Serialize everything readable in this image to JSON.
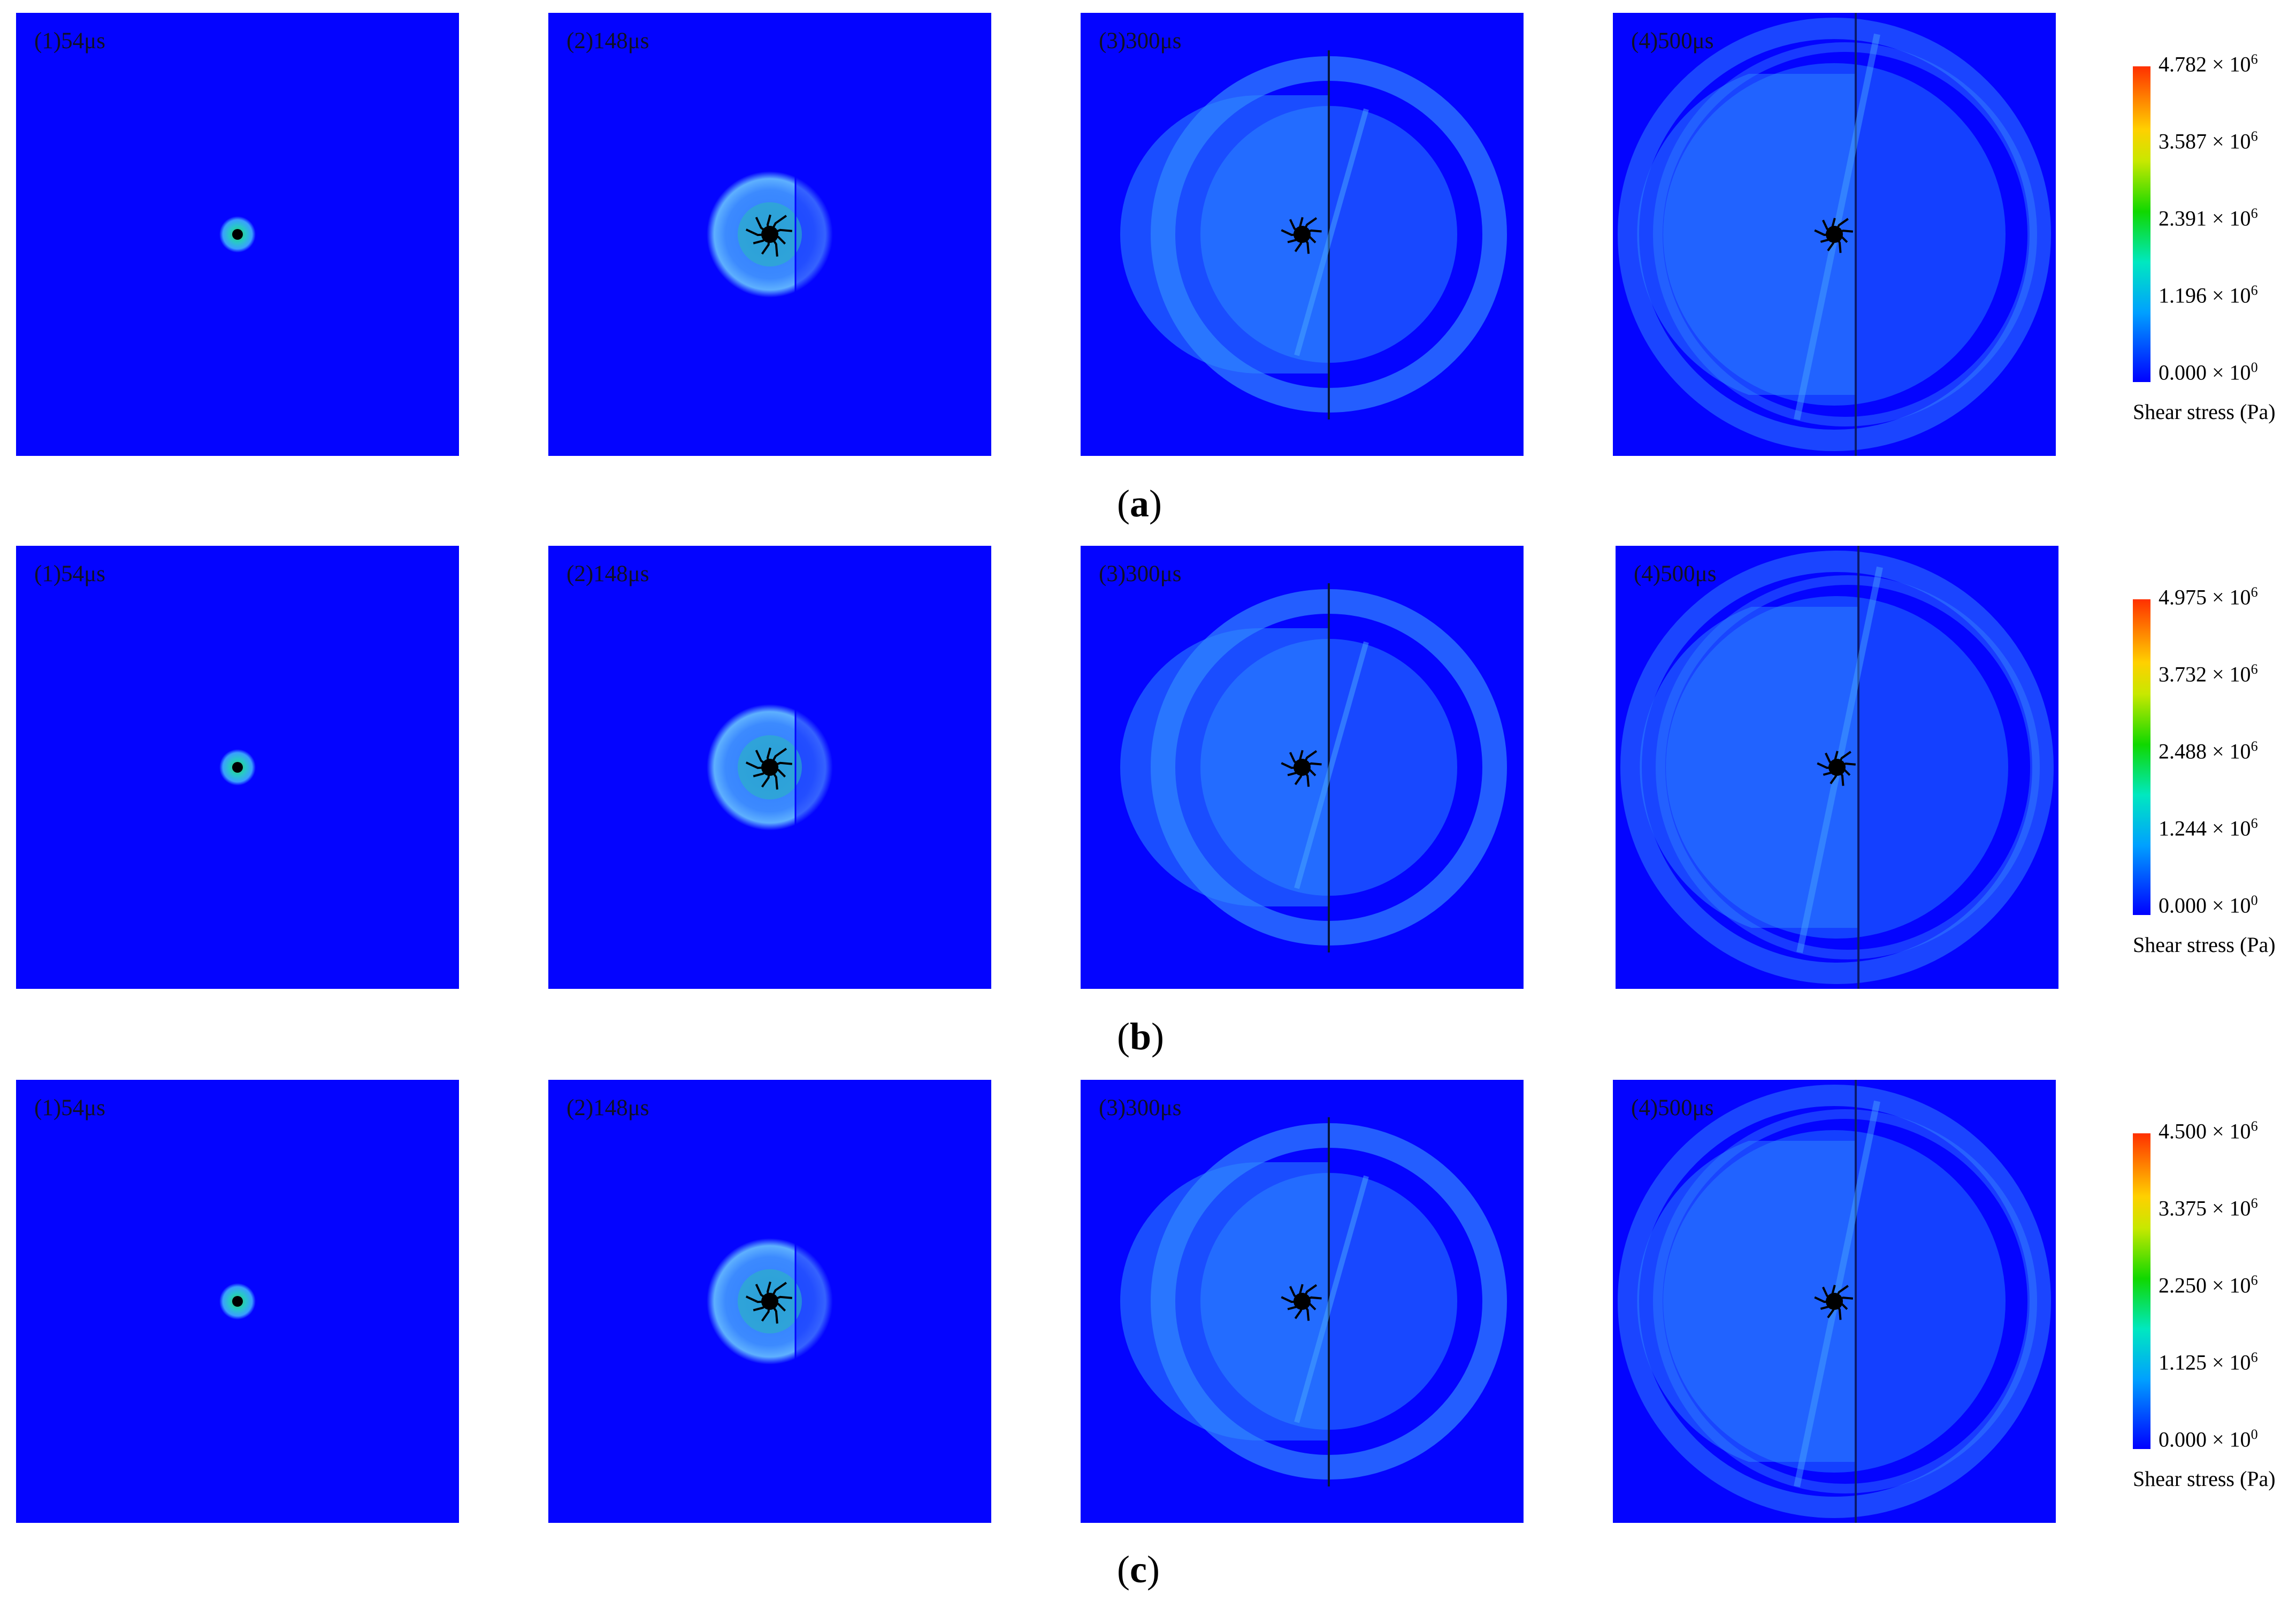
{
  "rows": [
    {
      "caption_letter": "a",
      "panels": [
        "(1)54μs",
        "(2)148μs",
        "(3)300μs",
        "(4)500μs"
      ],
      "colorbar": {
        "ticks": [
          "4.782 × 10",
          "3.587 × 10",
          "2.391 × 10",
          "1.196 × 10",
          "0.000 × 10"
        ],
        "exponents": [
          "6",
          "6",
          "6",
          "6",
          "0"
        ],
        "label": "Shear stress (Pa)"
      }
    },
    {
      "caption_letter": "b",
      "panels": [
        "(1)54μs",
        "(2)148μs",
        "(3)300μs",
        "(4)500μs"
      ],
      "colorbar": {
        "ticks": [
          "4.975 × 10",
          "3.732 × 10",
          "2.488 × 10",
          "1.244 × 10",
          "0.000 × 10"
        ],
        "exponents": [
          "6",
          "6",
          "6",
          "6",
          "0"
        ],
        "label": "Shear stress (Pa)"
      }
    },
    {
      "caption_letter": "c",
      "panels": [
        "(1)54μs",
        "(2)148μs",
        "(3)300μs",
        "(4)500μs"
      ],
      "colorbar": {
        "ticks": [
          "4.500 × 10",
          "3.375 × 10",
          "2.250 × 10",
          "1.125 × 10",
          "0.000 × 10"
        ],
        "exponents": [
          "6",
          "6",
          "6",
          "6",
          "0"
        ],
        "label": "Shear stress (Pa)"
      }
    }
  ],
  "colors": {
    "background": "#0404ff",
    "wave": "#4aa8ff",
    "crack": "#000000"
  }
}
